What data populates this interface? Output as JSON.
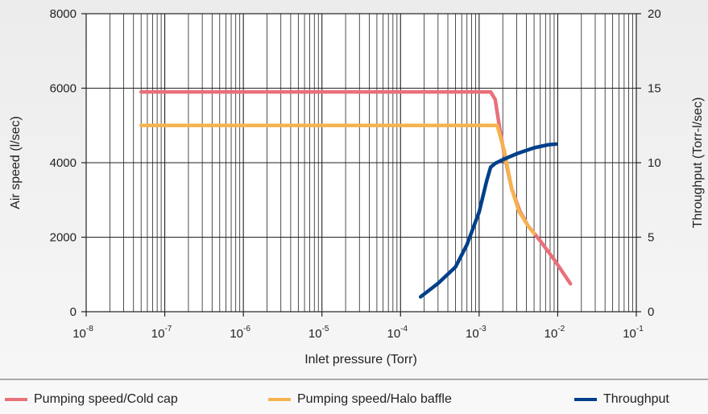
{
  "chart_data": {
    "type": "line",
    "x_axis": {
      "label": "Inlet pressure (Torr)",
      "scale": "log",
      "range": [
        1e-08,
        0.1
      ],
      "tick_base": "10",
      "tick_exponents": [
        "-8",
        "-7",
        "-6",
        "-5",
        "-4",
        "-3",
        "-2",
        "-1"
      ]
    },
    "y_axis_left": {
      "label": "Air speed (l/sec)",
      "range": [
        0,
        8000
      ],
      "ticks": [
        "0",
        "2000",
        "4000",
        "6000",
        "8000"
      ]
    },
    "y_axis_right": {
      "label": "Throughput (Torr-l/sec)",
      "range": [
        0,
        20
      ],
      "ticks": [
        "0",
        "5",
        "10",
        "15",
        "20"
      ]
    },
    "grid": true,
    "legend_position": "bottom",
    "series": [
      {
        "name": "Pumping speed/Cold cap",
        "axis": "left",
        "color": "#e8707a",
        "points": [
          [
            5e-08,
            5900
          ],
          [
            1e-07,
            5900
          ],
          [
            1e-06,
            5900
          ],
          [
            1e-05,
            5900
          ],
          [
            0.0001,
            5900
          ],
          [
            0.001,
            5900
          ],
          [
            0.0014,
            5900
          ],
          [
            0.0016,
            5700
          ],
          [
            0.0018,
            5000
          ],
          [
            0.0021,
            4200
          ],
          [
            0.0026,
            3300
          ],
          [
            0.0033,
            2700
          ],
          [
            0.0042,
            2300
          ],
          [
            0.006,
            1900
          ],
          [
            0.009,
            1400
          ],
          [
            0.0145,
            750
          ]
        ]
      },
      {
        "name": "Pumping speed/Halo baffle",
        "axis": "left",
        "color": "#f5b350",
        "points": [
          [
            5e-08,
            5000
          ],
          [
            1e-07,
            5000
          ],
          [
            1e-06,
            5000
          ],
          [
            1e-05,
            5000
          ],
          [
            0.0001,
            5000
          ],
          [
            0.001,
            5000
          ],
          [
            0.0017,
            5000
          ],
          [
            0.0021,
            4300
          ],
          [
            0.0026,
            3300
          ],
          [
            0.0032,
            2700
          ],
          [
            0.0042,
            2300
          ],
          [
            0.005,
            2100
          ]
        ]
      },
      {
        "name": "Throughput",
        "axis": "right",
        "color": "#003f8a",
        "points": [
          [
            0.00018,
            1.0
          ],
          [
            0.0003,
            1.9
          ],
          [
            0.0005,
            3.0
          ],
          [
            0.0007,
            4.5
          ],
          [
            0.001,
            6.7
          ],
          [
            0.00125,
            8.8
          ],
          [
            0.0014,
            9.7
          ],
          [
            0.0016,
            9.95
          ],
          [
            0.002,
            10.2
          ],
          [
            0.003,
            10.6
          ],
          [
            0.005,
            11.0
          ],
          [
            0.0075,
            11.2
          ],
          [
            0.0095,
            11.25
          ]
        ]
      }
    ]
  }
}
